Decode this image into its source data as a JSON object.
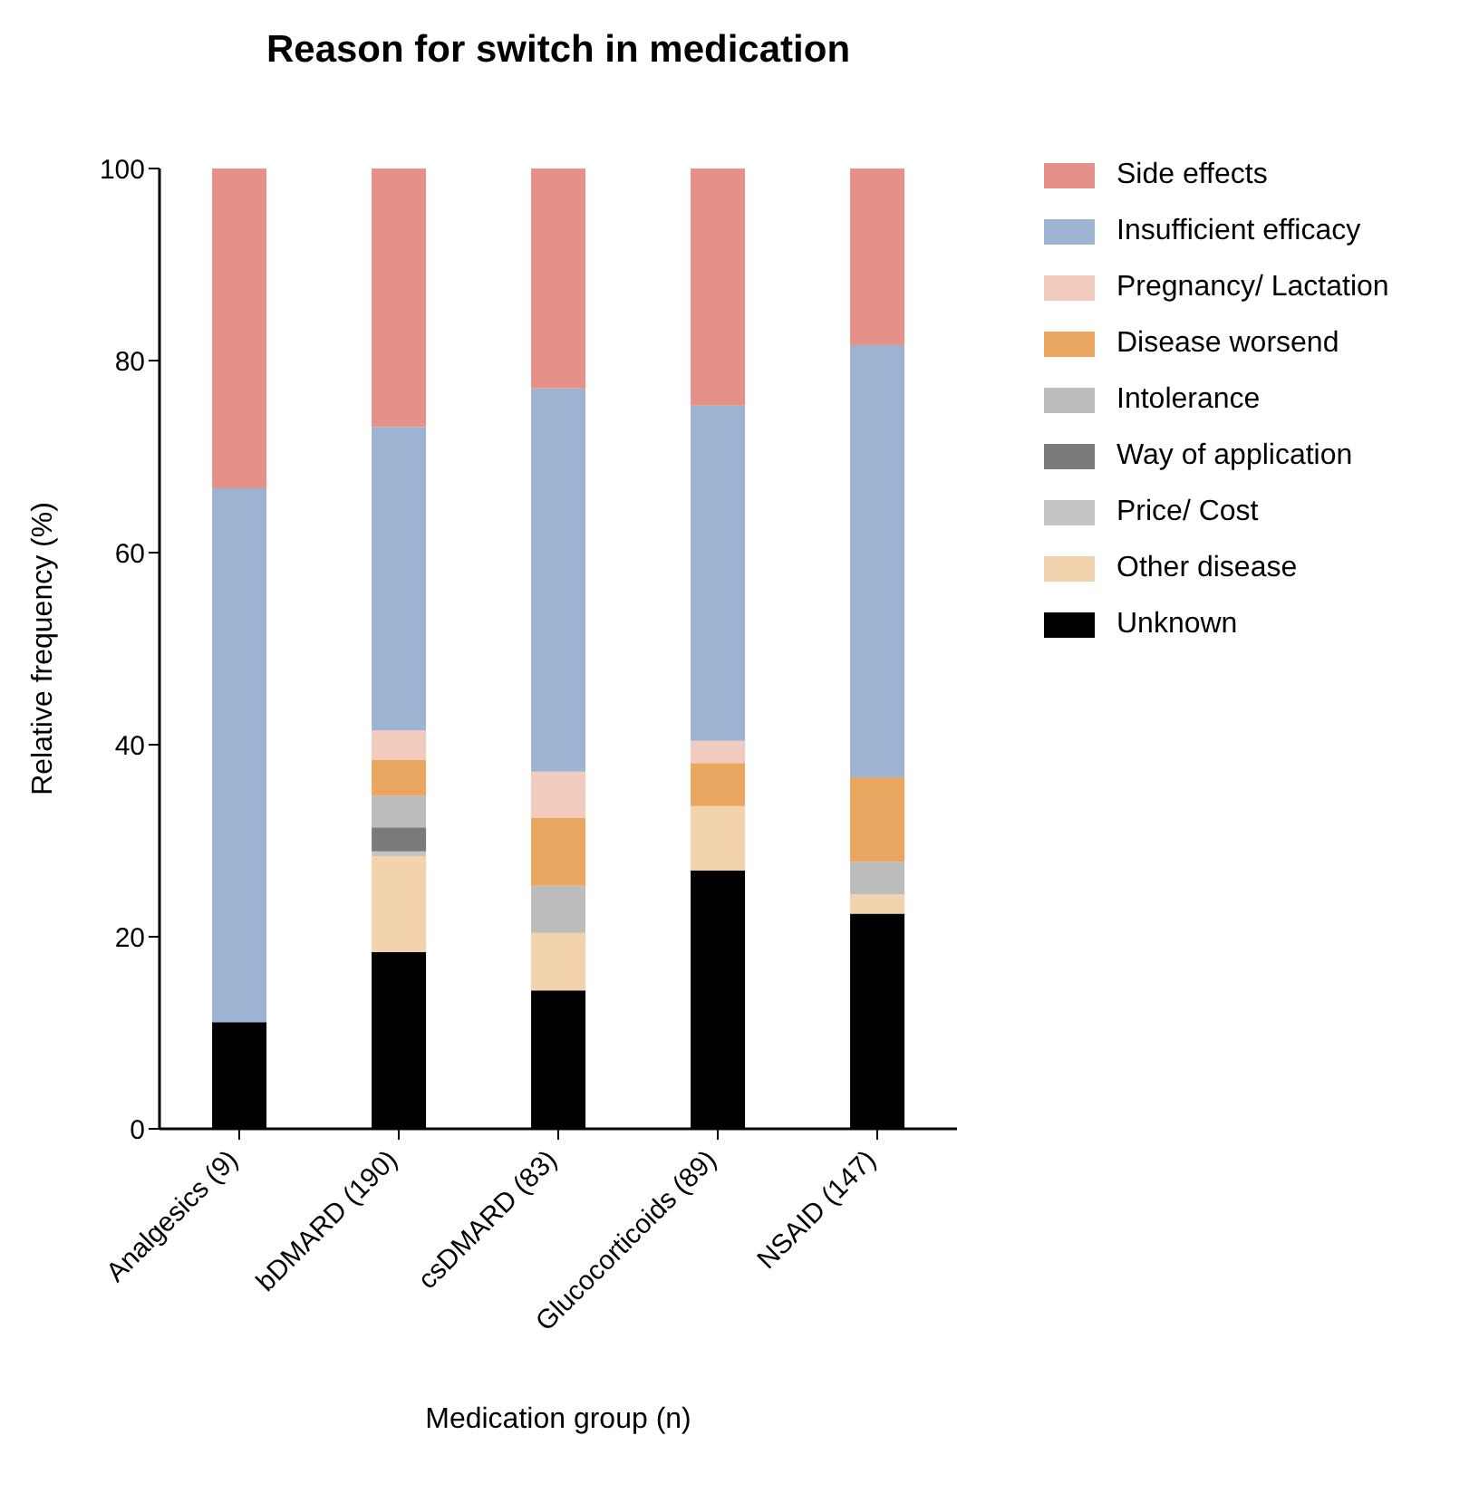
{
  "chart_data": {
    "type": "bar",
    "title": "Reason for switch in medication",
    "xlabel": "Medication group (n)",
    "ylabel": "Relative frequency (%)",
    "categories": [
      "Analgesics (9)",
      "bDMARD (190)",
      "csDMARD (83)",
      "Glucocorticoids (89)",
      "NSAID (147)"
    ],
    "stacked": true,
    "ylim": [
      0,
      100
    ],
    "yticks": [
      0,
      20,
      40,
      60,
      80,
      100
    ],
    "legend": "top right",
    "series": [
      {
        "name": "Unknown",
        "color": "#000000",
        "values": [
          11.1,
          18.4,
          14.4,
          26.9,
          22.4
        ]
      },
      {
        "name": "Other disease",
        "color": "#f2d3ae",
        "values": [
          0,
          10.0,
          6.0,
          6.7,
          2.0
        ]
      },
      {
        "name": "Price/ Cost",
        "color": "#c4c4c4",
        "values": [
          0,
          0.5,
          0,
          0,
          0
        ]
      },
      {
        "name": "Way of application",
        "color": "#7a7a7a",
        "values": [
          0,
          2.5,
          0,
          0,
          0
        ]
      },
      {
        "name": "Intolerance",
        "color": "#bcbcbc",
        "values": [
          0,
          3.3,
          4.9,
          0,
          3.4
        ]
      },
      {
        "name": "Disease worsend",
        "color": "#e8a660",
        "values": [
          0,
          3.7,
          7.1,
          4.5,
          8.8
        ]
      },
      {
        "name": "Pregnancy/ Lactation",
        "color": "#f2cbbf",
        "values": [
          0,
          3.1,
          4.8,
          2.3,
          0
        ]
      },
      {
        "name": "Insufficient efficacy",
        "color": "#9db3d2",
        "values": [
          55.6,
          31.6,
          39.9,
          34.9,
          45.0
        ]
      },
      {
        "name": "Side effects",
        "color": "#e5918a",
        "values": [
          33.3,
          26.9,
          22.9,
          24.7,
          18.4
        ]
      }
    ]
  }
}
